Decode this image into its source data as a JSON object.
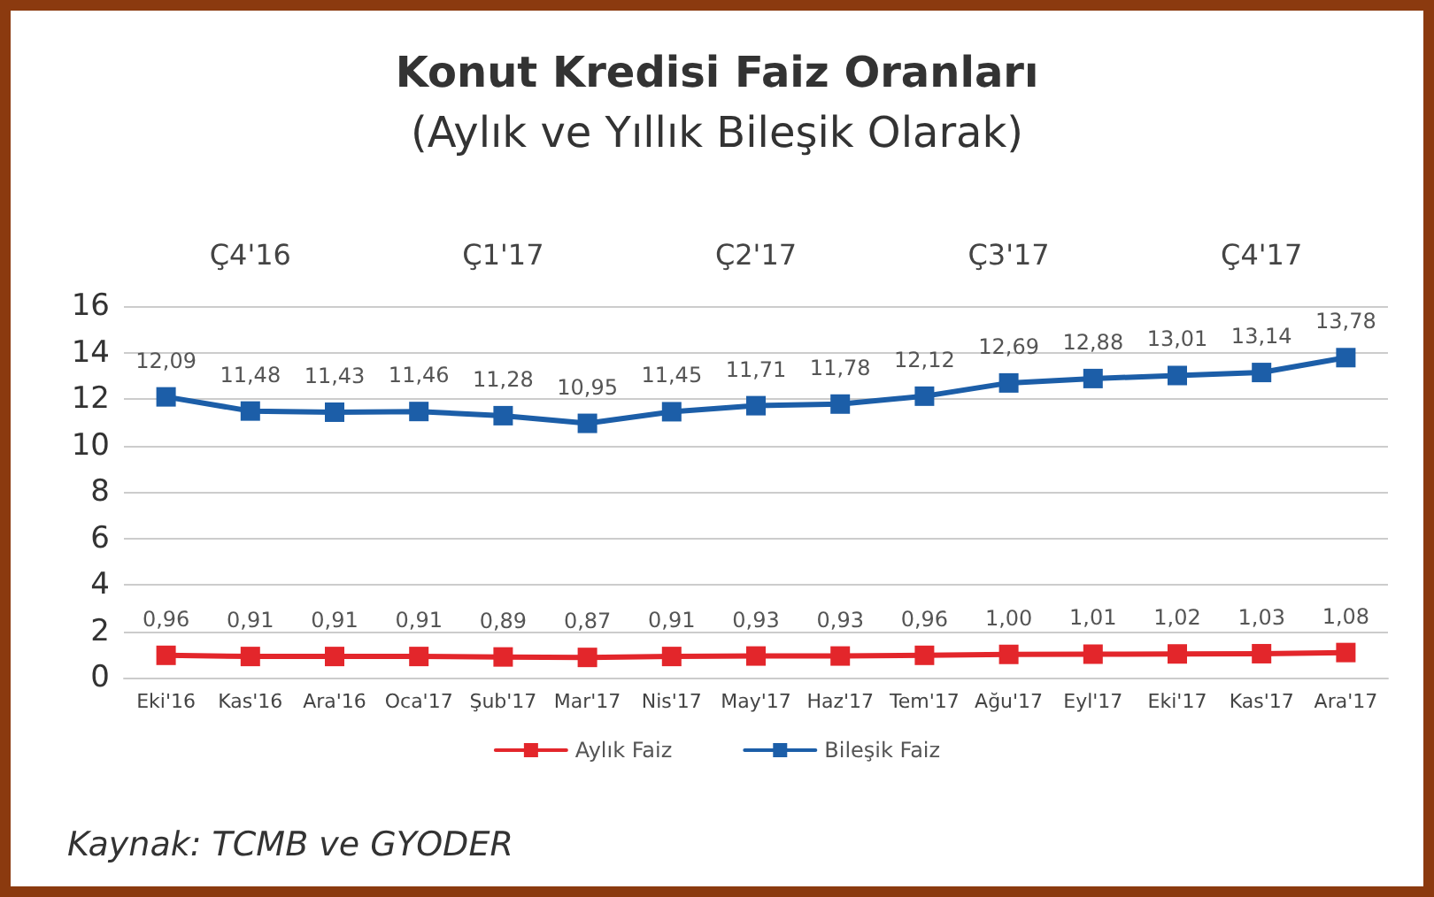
{
  "chart_data": {
    "type": "line",
    "title": "Konut Kredisi Faiz Oranları",
    "subtitle": "(Aylık ve Yıllık Bileşik Olarak)",
    "categories": [
      "Eki'16",
      "Kas'16",
      "Ara'16",
      "Oca'17",
      "Şub'17",
      "Mar'17",
      "Nis'17",
      "May'17",
      "Haz'17",
      "Tem'17",
      "Ağu'17",
      "Eyl'17",
      "Eki'17",
      "Kas'17",
      "Ara'17"
    ],
    "series": [
      {
        "name": "Aylık Faiz",
        "color": "#e3262b",
        "values": [
          0.96,
          0.91,
          0.91,
          0.91,
          0.89,
          0.87,
          0.91,
          0.93,
          0.93,
          0.96,
          1.0,
          1.01,
          1.02,
          1.03,
          1.08
        ],
        "value_labels": [
          "0,96",
          "0,91",
          "0,91",
          "0,91",
          "0,89",
          "0,87",
          "0,91",
          "0,93",
          "0,93",
          "0,96",
          "1,00",
          "1,01",
          "1,02",
          "1,03",
          "1,08"
        ]
      },
      {
        "name": "Bileşik Faiz",
        "color": "#1c5ea8",
        "values": [
          12.09,
          11.48,
          11.43,
          11.46,
          11.28,
          10.95,
          11.45,
          11.71,
          11.78,
          12.12,
          12.69,
          12.88,
          13.01,
          13.14,
          13.78
        ],
        "value_labels": [
          "12,09",
          "11,48",
          "11,43",
          "11,46",
          "11,28",
          "10,95",
          "11,45",
          "11,71",
          "11,78",
          "12,12",
          "12,69",
          "12,88",
          "13,01",
          "13,14",
          "13,78"
        ]
      }
    ],
    "ylim": [
      0,
      16
    ],
    "yticks": [
      0,
      2,
      4,
      6,
      8,
      10,
      12,
      14,
      16
    ],
    "grid": "y",
    "legend": "bottom",
    "marker": "square",
    "line_style": "solid",
    "annotations": [
      "Ç4'16",
      "Ç1'17",
      "Ç2'17",
      "Ç3'17",
      "Ç4'17",
      "Kaynak: TCMB ve GYODER"
    ]
  }
}
